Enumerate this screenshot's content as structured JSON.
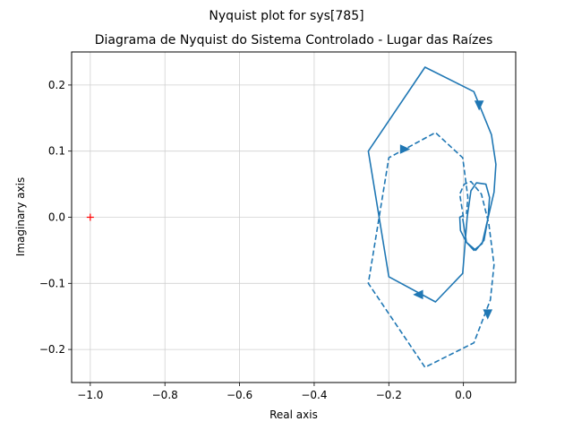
{
  "figure": {
    "suptitle": "Nyquist plot for sys[785]"
  },
  "chart_data": {
    "type": "line",
    "title": "Diagrama de Nyquist do Sistema Controlado - Lugar das Raízes",
    "xlabel": "Real axis",
    "ylabel": "Imaginary axis",
    "xlim": [
      -1.05,
      0.14
    ],
    "ylim": [
      -0.25,
      0.25
    ],
    "xticks": [
      -1.0,
      -0.8,
      -0.6,
      -0.4,
      -0.2,
      0.0
    ],
    "xtick_labels": [
      "−1.0",
      "−0.8",
      "−0.6",
      "−0.4",
      "−0.2",
      "0.0"
    ],
    "yticks": [
      -0.2,
      -0.1,
      0.0,
      0.1,
      0.2
    ],
    "ytick_labels": [
      "−0.2",
      "−0.1",
      "0.0",
      "0.1",
      "0.2"
    ],
    "grid": true,
    "critical_point": {
      "x": -1.0,
      "y": 0.0,
      "marker": "+",
      "color": "#ff0000"
    },
    "series_color": "#1f77b4",
    "series": [
      {
        "style": "solid",
        "points": [
          [
            -0.002,
            -0.002
          ],
          [
            0.008,
            -0.038
          ],
          [
            0.033,
            -0.05
          ],
          [
            0.055,
            -0.035
          ],
          [
            0.066,
            0.0
          ],
          [
            0.07,
            0.03
          ],
          [
            0.06,
            0.05
          ],
          [
            0.035,
            0.052
          ],
          [
            0.02,
            0.04
          ],
          [
            0.01,
            0.0
          ],
          [
            -0.002,
            -0.085
          ],
          [
            -0.075,
            -0.128
          ],
          [
            -0.2,
            -0.09
          ],
          [
            -0.255,
            0.1
          ],
          [
            -0.103,
            0.227
          ],
          [
            0.028,
            0.19
          ],
          [
            0.075,
            0.125
          ],
          [
            0.087,
            0.08
          ],
          [
            0.082,
            0.038
          ],
          [
            0.05,
            -0.04
          ],
          [
            0.028,
            -0.05
          ],
          [
            0.008,
            -0.038
          ],
          [
            -0.008,
            -0.02
          ],
          [
            -0.01,
            0.0
          ],
          [
            0.0,
            0.003
          ]
        ],
        "arrows": [
          {
            "x": 0.042,
            "y": 0.171,
            "direction": "down"
          },
          {
            "x": -0.118,
            "y": -0.117,
            "direction": "left"
          }
        ]
      },
      {
        "style": "dashed",
        "points": [
          [
            0.0,
            0.0
          ],
          [
            -0.01,
            0.035
          ],
          [
            0.002,
            0.05
          ],
          [
            0.02,
            0.054
          ],
          [
            0.048,
            0.035
          ],
          [
            0.068,
            -0.01
          ],
          [
            0.082,
            -0.072
          ],
          [
            0.072,
            -0.125
          ],
          [
            0.028,
            -0.19
          ],
          [
            -0.103,
            -0.227
          ],
          [
            -0.255,
            -0.1
          ],
          [
            -0.2,
            0.09
          ],
          [
            -0.075,
            0.128
          ],
          [
            -0.002,
            0.09
          ],
          [
            0.012,
            0.03
          ],
          [
            0.008,
            0.005
          ]
        ],
        "arrows": [
          {
            "x": -0.16,
            "y": 0.103,
            "direction": "right"
          },
          {
            "x": 0.065,
            "y": -0.145,
            "direction": "down"
          }
        ]
      }
    ]
  }
}
